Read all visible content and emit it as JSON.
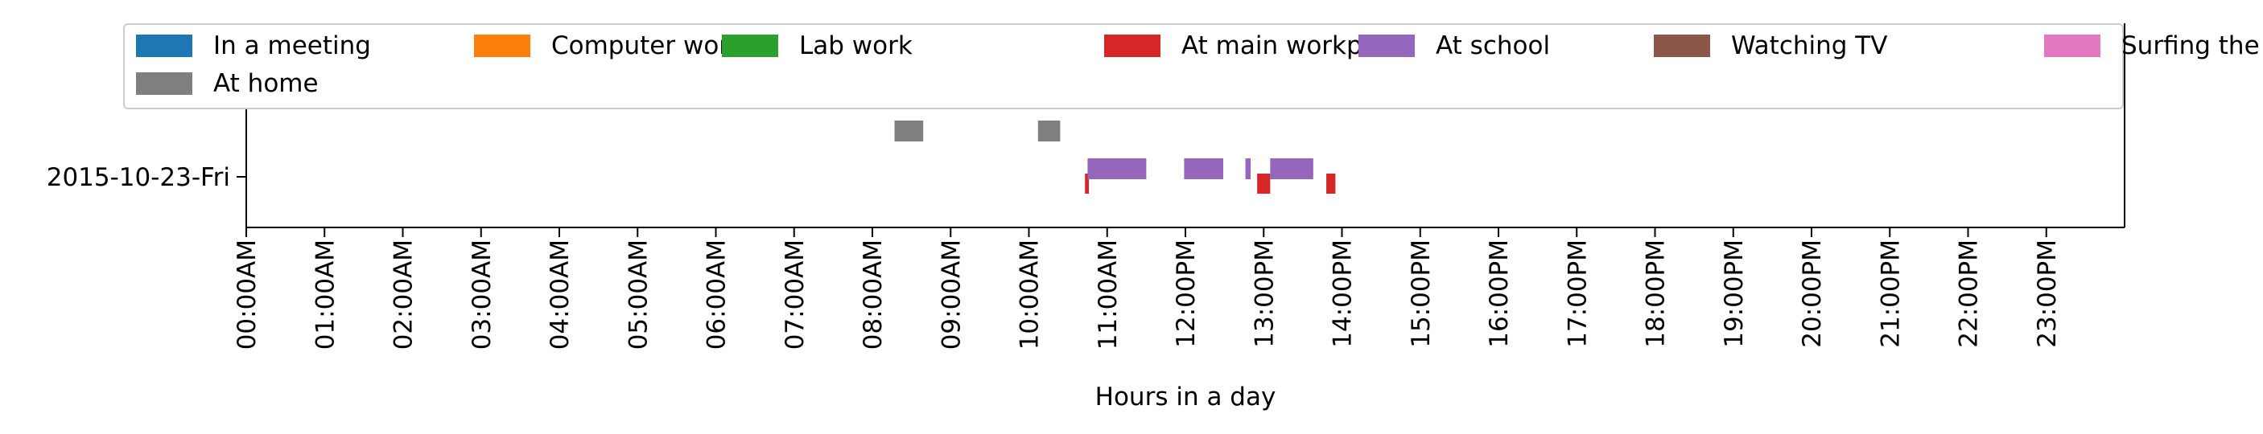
{
  "chart_data": {
    "type": "gantt",
    "title": "",
    "xlabel": "Hours in a day",
    "ylabel": "",
    "xlim": [
      "00:00AM",
      "24:00"
    ],
    "x_tick_labels": [
      "00:00AM",
      "01:00AM",
      "02:00AM",
      "03:00AM",
      "04:00AM",
      "05:00AM",
      "06:00AM",
      "07:00AM",
      "08:00AM",
      "09:00AM",
      "10:00AM",
      "11:00AM",
      "12:00PM",
      "13:00PM",
      "14:00PM",
      "15:00PM",
      "16:00PM",
      "17:00PM",
      "18:00PM",
      "19:00PM",
      "20:00PM",
      "21:00PM",
      "22:00PM",
      "23:00PM"
    ],
    "categories": [
      "2015-10-23-Fri"
    ],
    "legend_position": "top",
    "grid": false,
    "series": [
      {
        "name": "In a meeting",
        "color": "#1f77b4",
        "intervals": []
      },
      {
        "name": "Computer work",
        "color": "#ff7f0e",
        "intervals": []
      },
      {
        "name": "Lab work",
        "color": "#2ca02c",
        "intervals": []
      },
      {
        "name": "At main workplace",
        "color": "#d62728",
        "intervals": [
          {
            "start": "10:43",
            "end": "10:46"
          },
          {
            "start": "12:55",
            "end": "13:05"
          },
          {
            "start": "13:48",
            "end": "13:55"
          }
        ]
      },
      {
        "name": "At school",
        "color": "#9467bd",
        "intervals": [
          {
            "start": "10:45",
            "end": "11:30"
          },
          {
            "start": "11:59",
            "end": "12:29"
          },
          {
            "start": "12:46",
            "end": "12:50"
          },
          {
            "start": "13:05",
            "end": "13:38"
          }
        ]
      },
      {
        "name": "Watching TV",
        "color": "#8c564b",
        "intervals": []
      },
      {
        "name": "Surfing the internet",
        "color": "#e377c2",
        "intervals": []
      },
      {
        "name": "At home",
        "color": "#7f7f7f",
        "intervals": [
          {
            "start": "08:17",
            "end": "08:39"
          },
          {
            "start": "10:07",
            "end": "10:24"
          }
        ]
      }
    ]
  }
}
